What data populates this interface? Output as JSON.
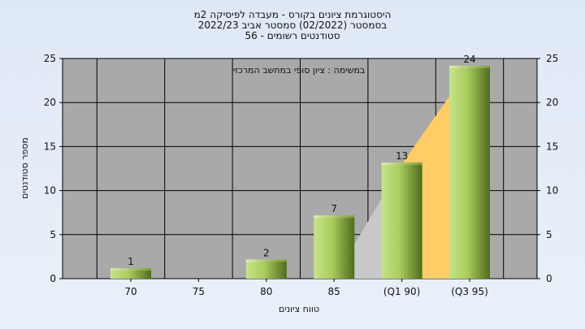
{
  "header": {
    "line1": "היסטוגרמת ציונים בקורס - מעבדה לפיסיקה 2מ",
    "line2": "בסמסטר  (02/2022)  סמסטר אביב 2022/23",
    "line3": "סטודנטים רשומים - 56"
  },
  "chart_data": {
    "type": "bar",
    "title": "היסטוגרמת ציונים בקורס - מעבדה לפיסיקה 2מ",
    "annotation": "במשימה : ציון סופי במחשב המרכזי",
    "xlabel": "טווח ציונים",
    "ylabel": "מספר סטודנטים",
    "categories": [
      "70",
      "75",
      "80",
      "85",
      "(Q1 90)",
      "(Q3 95)"
    ],
    "values": [
      1,
      0,
      2,
      7,
      13,
      24
    ],
    "data_labels": [
      "1",
      "",
      "2",
      "7",
      "13",
      "24"
    ],
    "ylim": [
      0,
      25
    ],
    "yticks": [
      0,
      5,
      10,
      15,
      20,
      25
    ],
    "ytick_labels": [
      "0",
      "5",
      "10",
      "15",
      "20",
      "25"
    ],
    "grid": true,
    "quartile_area": {
      "gray_from_category": "85",
      "gold_from_category": "(Q1 90)",
      "to_category": "(Q3 95)"
    },
    "colors": {
      "plot_bg": "#a9a9a9",
      "bar_light": "#c6e48b",
      "bar_dark": "#4f6b1e",
      "q_gray": "#c8c8c8",
      "q_gold": "#ffcc66",
      "page_bg": "#dfe9f6"
    }
  }
}
